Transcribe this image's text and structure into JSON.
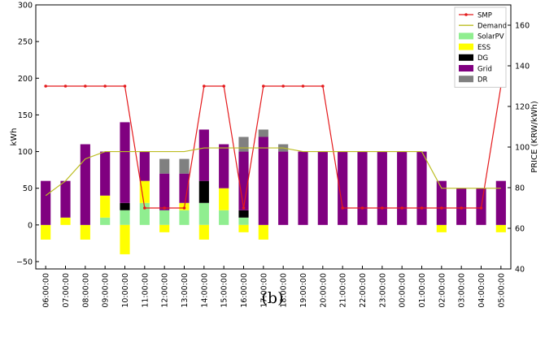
{
  "chart_data": {
    "type": "bar",
    "title": "",
    "caption": "(b)",
    "xlabel": "",
    "ylabel": "kWh",
    "y2label": "PRICE (KRW/kWh)",
    "ylim": [
      -60,
      300
    ],
    "y2lim": [
      40,
      170
    ],
    "yticks": [
      -50,
      0,
      50,
      100,
      150,
      200,
      250,
      300
    ],
    "y2ticks": [
      40,
      60,
      80,
      100,
      120,
      140,
      160
    ],
    "categories": [
      "06:00:00",
      "07:00:00",
      "08:00:00",
      "09:00:00",
      "10:00:00",
      "11:00:00",
      "12:00:00",
      "13:00:00",
      "14:00:00",
      "15:00:00",
      "16:00:00",
      "17:00:00",
      "18:00:00",
      "19:00:00",
      "20:00:00",
      "21:00:00",
      "22:00:00",
      "23:00:00",
      "00:00:00",
      "01:00:00",
      "02:00:00",
      "03:00:00",
      "04:00:00",
      "05:00:00"
    ],
    "stacked": true,
    "series": [
      {
        "name": "SolarPV",
        "color": "#90ee90",
        "values": [
          0,
          0,
          0,
          10,
          20,
          30,
          20,
          20,
          30,
          20,
          10,
          0,
          0,
          0,
          0,
          0,
          0,
          0,
          0,
          0,
          0,
          0,
          0,
          0
        ]
      },
      {
        "name": "ESS",
        "color": "#ffff00",
        "values": [
          -20,
          10,
          -20,
          30,
          -40,
          30,
          -10,
          10,
          -20,
          30,
          -10,
          -20,
          0,
          0,
          0,
          0,
          0,
          0,
          0,
          0,
          -10,
          0,
          0,
          -10
        ]
      },
      {
        "name": "DG",
        "color": "#000000",
        "values": [
          0,
          0,
          0,
          0,
          10,
          0,
          0,
          0,
          30,
          0,
          10,
          0,
          0,
          0,
          0,
          0,
          0,
          0,
          0,
          0,
          0,
          0,
          0,
          0
        ]
      },
      {
        "name": "Grid",
        "color": "#800080",
        "values": [
          60,
          50,
          110,
          60,
          110,
          40,
          50,
          40,
          70,
          60,
          80,
          120,
          100,
          100,
          100,
          100,
          100,
          100,
          100,
          100,
          60,
          50,
          50,
          60
        ]
      },
      {
        "name": "DR",
        "color": "#808080",
        "values": [
          0,
          0,
          0,
          0,
          0,
          0,
          20,
          20,
          0,
          0,
          20,
          10,
          10,
          0,
          0,
          0,
          0,
          0,
          0,
          0,
          0,
          0,
          0,
          0
        ]
      }
    ],
    "lines": [
      {
        "name": "SMP",
        "color": "#e41a1c",
        "axis": "right",
        "marker": "dot",
        "values": [
          130,
          130,
          130,
          130,
          130,
          70,
          70,
          70,
          130,
          130,
          70,
          130,
          130,
          130,
          130,
          70,
          70,
          70,
          70,
          70,
          70,
          70,
          70,
          130
        ]
      },
      {
        "name": "Demand",
        "color": "#bcbd22",
        "axis": "left",
        "values": [
          40,
          60,
          90,
          100,
          100,
          100,
          100,
          100,
          105,
          105,
          105,
          105,
          105,
          100,
          100,
          100,
          100,
          100,
          100,
          100,
          50,
          50,
          50,
          50
        ]
      }
    ],
    "legend": {
      "position": "top-right",
      "order": [
        "SMP",
        "Demand",
        "SolarPV",
        "ESS",
        "DG",
        "Grid",
        "DR"
      ]
    },
    "grid": false
  }
}
